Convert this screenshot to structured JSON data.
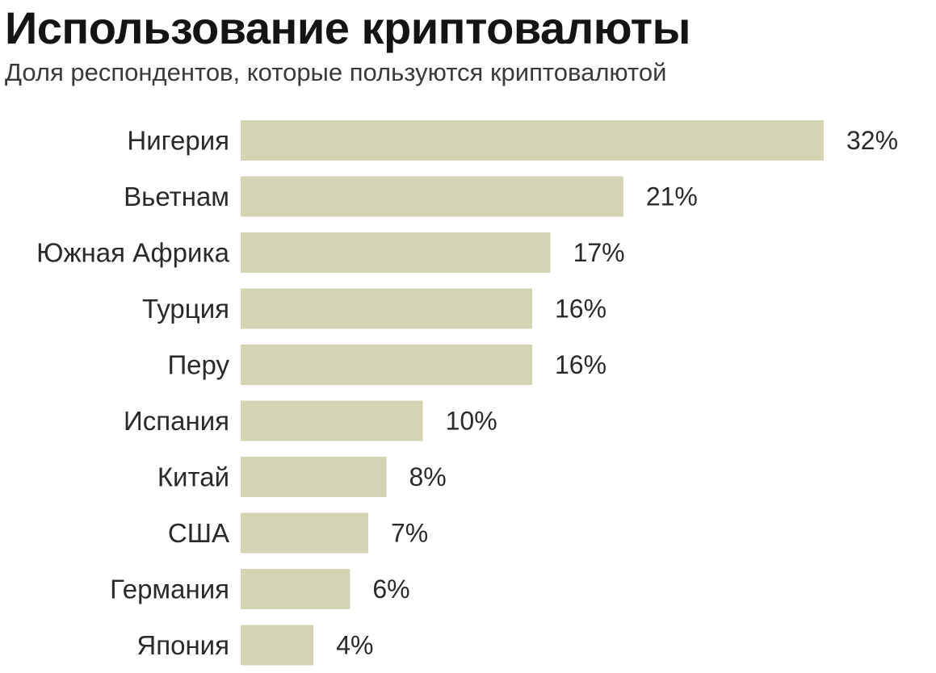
{
  "header": {
    "title": "Использование криптовалюты",
    "subtitle": "Доля респондентов, которые пользуются криптовалютой"
  },
  "chart_data": {
    "type": "bar",
    "orientation": "horizontal",
    "title": "Использование криптовалюты",
    "subtitle": "Доля респондентов, которые пользуются криптовалютой",
    "categories": [
      "Нигерия",
      "Вьетнам",
      "Южная Африка",
      "Турция",
      "Перу",
      "Испания",
      "Китай",
      "США",
      "Германия",
      "Япония"
    ],
    "values": [
      32,
      21,
      17,
      16,
      16,
      10,
      8,
      7,
      6,
      4
    ],
    "value_labels": [
      "32%",
      "21%",
      "17%",
      "16%",
      "16%",
      "10%",
      "8%",
      "7%",
      "6%",
      "4%"
    ],
    "unit": "%",
    "xlim": [
      0,
      32
    ],
    "grid": false,
    "legend": "none",
    "colors": {
      "bar": "#d4d3b3",
      "text": "#2a2a2a"
    }
  }
}
